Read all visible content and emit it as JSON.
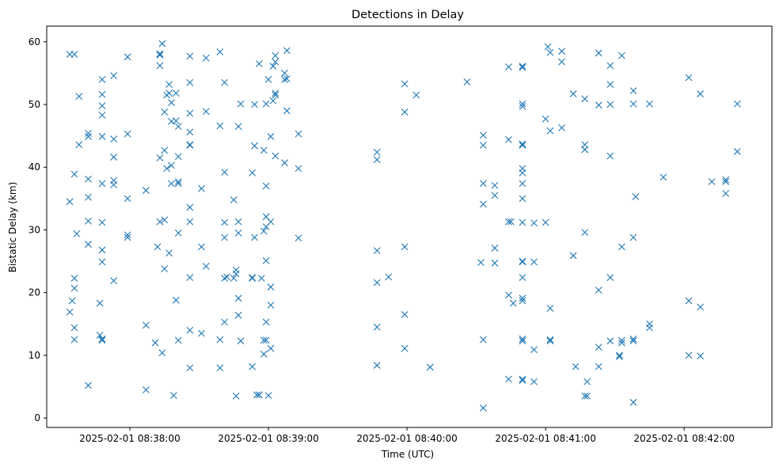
{
  "chart_data": {
    "type": "scatter",
    "title": "Detections in Delay",
    "xlabel": "Time (UTC)",
    "ylabel": "Bistatic Delay (km)",
    "marker": "x",
    "color": "#1f77b4",
    "grid": false,
    "xlim": [
      "2025-02-01 08:37:24",
      "2025-02-01 08:42:38"
    ],
    "ylim": [
      -1.5,
      62.5
    ],
    "x_ticks": [
      "2025-02-01 08:38:00",
      "2025-02-01 08:39:00",
      "2025-02-01 08:40:00",
      "2025-02-01 08:41:00",
      "2025-02-01 08:42:00"
    ],
    "y_ticks": [
      0,
      10,
      20,
      30,
      40,
      50,
      60
    ],
    "points": [
      [
        "08:37:34",
        58
      ],
      [
        "08:37:36",
        58
      ],
      [
        "08:37:34",
        34.5
      ],
      [
        "08:37:35",
        18.7
      ],
      [
        "08:37:34",
        16.9
      ],
      [
        "08:37:36",
        20.7
      ],
      [
        "08:37:36",
        22.3
      ],
      [
        "08:37:36",
        14.4
      ],
      [
        "08:37:36",
        12.5
      ],
      [
        "08:37:36",
        38.9
      ],
      [
        "08:37:37",
        29.4
      ],
      [
        "08:37:38",
        43.6
      ],
      [
        "08:37:38",
        51.3
      ],
      [
        "08:37:42",
        44.9
      ],
      [
        "08:37:42",
        45.4
      ],
      [
        "08:37:42",
        38.1
      ],
      [
        "08:37:42",
        35.2
      ],
      [
        "08:37:42",
        31.4
      ],
      [
        "08:37:42",
        27.7
      ],
      [
        "08:37:42",
        5.2
      ],
      [
        "08:37:47",
        18.3
      ],
      [
        "08:37:47",
        13.2
      ],
      [
        "08:37:48",
        12.6
      ],
      [
        "08:37:48",
        12.4
      ],
      [
        "08:37:48",
        24.9
      ],
      [
        "08:37:48",
        26.8
      ],
      [
        "08:37:48",
        31.2
      ],
      [
        "08:37:48",
        37.4
      ],
      [
        "08:37:48",
        44.9
      ],
      [
        "08:37:48",
        48.3
      ],
      [
        "08:37:48",
        49.8
      ],
      [
        "08:37:48",
        51.6
      ],
      [
        "08:37:48",
        54
      ],
      [
        "08:37:53",
        54.6
      ],
      [
        "08:37:53",
        44.5
      ],
      [
        "08:37:53",
        41.6
      ],
      [
        "08:37:53",
        37.9
      ],
      [
        "08:37:53",
        37.2
      ],
      [
        "08:37:53",
        21.9
      ],
      [
        "08:37:59",
        57.6
      ],
      [
        "08:37:59",
        45.3
      ],
      [
        "08:37:59",
        35
      ],
      [
        "08:37:59",
        29.2
      ],
      [
        "08:37:59",
        28.8
      ],
      [
        "08:38:07",
        36.3
      ],
      [
        "08:38:07",
        14.8
      ],
      [
        "08:38:07",
        4.5
      ],
      [
        "08:38:11",
        12
      ],
      [
        "08:38:12",
        27.3
      ],
      [
        "08:38:13",
        58.1
      ],
      [
        "08:38:13",
        57.9
      ],
      [
        "08:38:13",
        56.2
      ],
      [
        "08:38:13",
        41.5
      ],
      [
        "08:38:13",
        31.3
      ],
      [
        "08:38:14",
        59.7
      ],
      [
        "08:38:14",
        10.4
      ],
      [
        "08:38:15",
        48.8
      ],
      [
        "08:38:15",
        42.7
      ],
      [
        "08:38:15",
        31.6
      ],
      [
        "08:38:15",
        23.8
      ],
      [
        "08:38:16",
        51.5
      ],
      [
        "08:38:16",
        39.8
      ],
      [
        "08:38:17",
        53.2
      ],
      [
        "08:38:17",
        51.8
      ],
      [
        "08:38:17",
        26.3
      ],
      [
        "08:38:18",
        50.3
      ],
      [
        "08:38:18",
        47.3
      ],
      [
        "08:38:18",
        40.3
      ],
      [
        "08:38:18",
        37.4
      ],
      [
        "08:38:19",
        3.6
      ],
      [
        "08:38:20",
        51.8
      ],
      [
        "08:38:20",
        47.4
      ],
      [
        "08:38:20",
        18.8
      ],
      [
        "08:38:21",
        46.5
      ],
      [
        "08:38:21",
        41.7
      ],
      [
        "08:38:21",
        37.7
      ],
      [
        "08:38:21",
        37.4
      ],
      [
        "08:38:21",
        29.5
      ],
      [
        "08:38:21",
        12.4
      ],
      [
        "08:38:26",
        57.7
      ],
      [
        "08:38:26",
        53.5
      ],
      [
        "08:38:26",
        48.6
      ],
      [
        "08:38:26",
        45.6
      ],
      [
        "08:38:26",
        43.6
      ],
      [
        "08:38:26",
        43.5
      ],
      [
        "08:38:26",
        33.6
      ],
      [
        "08:38:26",
        31.3
      ],
      [
        "08:38:26",
        22.4
      ],
      [
        "08:38:26",
        14
      ],
      [
        "08:38:26",
        8
      ],
      [
        "08:38:31",
        36.6
      ],
      [
        "08:38:31",
        27.3
      ],
      [
        "08:38:31",
        13.5
      ],
      [
        "08:38:33",
        57.4
      ],
      [
        "08:38:33",
        48.9
      ],
      [
        "08:38:33",
        24.2
      ],
      [
        "08:38:39",
        58.4
      ],
      [
        "08:38:39",
        46.6
      ],
      [
        "08:38:39",
        12.5
      ],
      [
        "08:38:39",
        8
      ],
      [
        "08:38:41",
        53.5
      ],
      [
        "08:38:41",
        39.2
      ],
      [
        "08:38:41",
        31.2
      ],
      [
        "08:38:41",
        28.8
      ],
      [
        "08:38:41",
        22.3
      ],
      [
        "08:38:41",
        15.3
      ],
      [
        "08:38:42",
        22.5
      ],
      [
        "08:38:45",
        34.8
      ],
      [
        "08:38:45",
        22.3
      ],
      [
        "08:38:46",
        23.6
      ],
      [
        "08:38:46",
        23
      ],
      [
        "08:38:47",
        46.5
      ],
      [
        "08:38:47",
        31.3
      ],
      [
        "08:38:47",
        29.5
      ],
      [
        "08:38:47",
        19.1
      ],
      [
        "08:38:47",
        16.4
      ],
      [
        "08:38:46",
        3.5
      ],
      [
        "08:38:48",
        50.1
      ],
      [
        "08:38:48",
        12.3
      ],
      [
        "08:38:53",
        39.1
      ],
      [
        "08:38:53",
        22.4
      ],
      [
        "08:38:53",
        22.3
      ],
      [
        "08:38:53",
        8.2
      ],
      [
        "08:38:54",
        50
      ],
      [
        "08:38:54",
        43.4
      ],
      [
        "08:38:54",
        28.8
      ],
      [
        "08:38:55",
        3.7
      ],
      [
        "08:38:56",
        3.7
      ],
      [
        "08:38:56",
        56.5
      ],
      [
        "08:38:57",
        22.3
      ],
      [
        "08:38:58",
        42.7
      ],
      [
        "08:38:58",
        29.8
      ],
      [
        "08:38:58",
        12.4
      ],
      [
        "08:38:58",
        10.2
      ],
      [
        "08:38:59",
        30.5
      ],
      [
        "08:38:59",
        32.1
      ],
      [
        "08:38:59",
        15.3
      ],
      [
        "08:38:59",
        12.4
      ],
      [
        "08:38:59",
        50.1
      ],
      [
        "08:38:59",
        37
      ],
      [
        "08:38:59",
        25.1
      ],
      [
        "08:39:00",
        54
      ],
      [
        "08:39:01",
        44.9
      ],
      [
        "08:39:01",
        31.3
      ],
      [
        "08:39:01",
        20.9
      ],
      [
        "08:39:01",
        18
      ],
      [
        "08:39:01",
        11.1
      ],
      [
        "08:39:00",
        3.6
      ],
      [
        "08:39:02",
        56.1
      ],
      [
        "08:39:02",
        50.6
      ],
      [
        "08:39:03",
        57.8
      ],
      [
        "08:39:03",
        56.8
      ],
      [
        "08:39:03",
        51.8
      ],
      [
        "08:39:03",
        51.5
      ],
      [
        "08:39:03",
        41.8
      ],
      [
        "08:39:07",
        40.7
      ],
      [
        "08:39:07",
        55
      ],
      [
        "08:39:07",
        54
      ],
      [
        "08:39:08",
        58.6
      ],
      [
        "08:39:08",
        54.1
      ],
      [
        "08:39:08",
        49
      ],
      [
        "08:39:13",
        45.3
      ],
      [
        "08:39:13",
        39.8
      ],
      [
        "08:39:13",
        28.7
      ],
      [
        "08:39:47",
        42.4
      ],
      [
        "08:39:47",
        41.2
      ],
      [
        "08:39:47",
        26.7
      ],
      [
        "08:39:47",
        21.6
      ],
      [
        "08:39:47",
        14.5
      ],
      [
        "08:39:47",
        8.4
      ],
      [
        "08:39:52",
        22.5
      ],
      [
        "08:39:59",
        53.3
      ],
      [
        "08:39:59",
        48.8
      ],
      [
        "08:39:59",
        27.3
      ],
      [
        "08:39:59",
        16.5
      ],
      [
        "08:39:59",
        11.1
      ],
      [
        "08:40:04",
        51.5
      ],
      [
        "08:40:10",
        8.1
      ],
      [
        "08:40:26",
        53.6
      ],
      [
        "08:40:33",
        45.1
      ],
      [
        "08:40:33",
        43.5
      ],
      [
        "08:40:33",
        37.4
      ],
      [
        "08:40:33",
        34.1
      ],
      [
        "08:40:32",
        24.8
      ],
      [
        "08:40:33",
        12.5
      ],
      [
        "08:40:33",
        1.6
      ],
      [
        "08:40:38",
        24.7
      ],
      [
        "08:40:38",
        27.1
      ],
      [
        "08:40:38",
        35.5
      ],
      [
        "08:40:38",
        37.1
      ],
      [
        "08:40:44",
        56
      ],
      [
        "08:40:44",
        44.4
      ],
      [
        "08:40:44",
        31.3
      ],
      [
        "08:40:44",
        19.6
      ],
      [
        "08:40:44",
        6.2
      ],
      [
        "08:40:45",
        31.3
      ],
      [
        "08:40:46",
        18.3
      ],
      [
        "08:40:50",
        56.1
      ],
      [
        "08:40:50",
        55.9
      ],
      [
        "08:40:50",
        50.1
      ],
      [
        "08:40:50",
        49.7
      ],
      [
        "08:40:50",
        43.7
      ],
      [
        "08:40:50",
        43.5
      ],
      [
        "08:40:50",
        39.8
      ],
      [
        "08:40:50",
        39.1
      ],
      [
        "08:40:50",
        37.4
      ],
      [
        "08:40:50",
        35
      ],
      [
        "08:40:50",
        31.2
      ],
      [
        "08:40:50",
        25
      ],
      [
        "08:40:50",
        24.9
      ],
      [
        "08:40:50",
        22.4
      ],
      [
        "08:40:50",
        19.1
      ],
      [
        "08:40:50",
        18.7
      ],
      [
        "08:40:50",
        12.6
      ],
      [
        "08:40:50",
        12.3
      ],
      [
        "08:40:50",
        6.2
      ],
      [
        "08:40:50",
        6
      ],
      [
        "08:40:55",
        31.1
      ],
      [
        "08:40:55",
        24.9
      ],
      [
        "08:40:55",
        10.9
      ],
      [
        "08:40:55",
        5.8
      ],
      [
        "08:41:00",
        31.2
      ],
      [
        "08:41:01",
        59.2
      ],
      [
        "08:41:00",
        47.7
      ],
      [
        "08:41:02",
        58.3
      ],
      [
        "08:41:02",
        45.8
      ],
      [
        "08:41:02",
        17.5
      ],
      [
        "08:41:02",
        12.5
      ],
      [
        "08:41:02",
        12.3
      ],
      [
        "08:41:07",
        58.5
      ],
      [
        "08:41:07",
        56.8
      ],
      [
        "08:41:07",
        46.3
      ],
      [
        "08:41:12",
        51.7
      ],
      [
        "08:41:12",
        25.9
      ],
      [
        "08:41:13",
        8.2
      ],
      [
        "08:41:17",
        50.9
      ],
      [
        "08:41:17",
        43.6
      ],
      [
        "08:41:17",
        42.8
      ],
      [
        "08:41:17",
        29.6
      ],
      [
        "08:41:17",
        3.5
      ],
      [
        "08:41:18",
        3.5
      ],
      [
        "08:41:18",
        5.8
      ],
      [
        "08:41:23",
        58.2
      ],
      [
        "08:41:23",
        49.9
      ],
      [
        "08:41:23",
        20.4
      ],
      [
        "08:41:23",
        11.3
      ],
      [
        "08:41:23",
        8.2
      ],
      [
        "08:41:28",
        56.2
      ],
      [
        "08:41:28",
        53.2
      ],
      [
        "08:41:28",
        50
      ],
      [
        "08:41:28",
        41.8
      ],
      [
        "08:41:28",
        22.4
      ],
      [
        "08:41:28",
        12.3
      ],
      [
        "08:41:33",
        57.8
      ],
      [
        "08:41:33",
        27.3
      ],
      [
        "08:41:33",
        12.4
      ],
      [
        "08:41:33",
        12
      ],
      [
        "08:41:32",
        10
      ],
      [
        "08:41:32",
        9.8
      ],
      [
        "08:41:38",
        52.2
      ],
      [
        "08:41:38",
        50.1
      ],
      [
        "08:41:38",
        28.8
      ],
      [
        "08:41:38",
        12.6
      ],
      [
        "08:41:38",
        12.3
      ],
      [
        "08:41:38",
        2.5
      ],
      [
        "08:41:39",
        35.3
      ],
      [
        "08:41:45",
        50.1
      ],
      [
        "08:41:45",
        15
      ],
      [
        "08:41:45",
        14.4
      ],
      [
        "08:41:51",
        38.4
      ],
      [
        "08:42:02",
        54.3
      ],
      [
        "08:42:02",
        18.7
      ],
      [
        "08:42:02",
        10
      ],
      [
        "08:42:07",
        51.7
      ],
      [
        "08:42:07",
        17.7
      ],
      [
        "08:42:07",
        9.9
      ],
      [
        "08:42:12",
        37.7
      ],
      [
        "08:42:18",
        38
      ],
      [
        "08:42:18",
        37.7
      ],
      [
        "08:42:18",
        35.8
      ],
      [
        "08:42:23",
        50.1
      ],
      [
        "08:42:23",
        42.5
      ]
    ]
  }
}
